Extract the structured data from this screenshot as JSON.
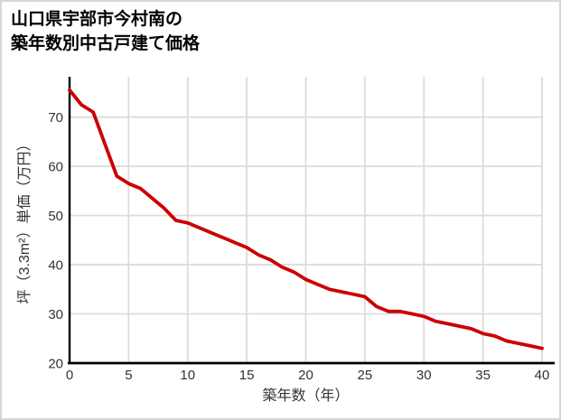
{
  "header": {
    "title_lines": [
      "山口県宇部市今村南の",
      "築年数別中古戸建て価格"
    ]
  },
  "chart_data": {
    "type": "line",
    "title": "山口県宇部市今村南の築年数別中古戸建て価格",
    "xlabel": "築年数（年）",
    "ylabel": "坪（3.3m²）単価（万円）",
    "x": [
      0,
      1,
      2,
      3,
      4,
      5,
      6,
      7,
      8,
      9,
      10,
      11,
      12,
      13,
      14,
      15,
      16,
      17,
      18,
      19,
      20,
      21,
      22,
      23,
      24,
      25,
      26,
      27,
      28,
      29,
      30,
      31,
      32,
      33,
      34,
      35,
      36,
      37,
      38,
      39,
      40
    ],
    "values": [
      75.5,
      72.5,
      71,
      64.5,
      58,
      56.5,
      55.5,
      53.5,
      51.5,
      49,
      48.5,
      47.5,
      46.5,
      45.5,
      44.5,
      43.5,
      42,
      41,
      39.5,
      38.5,
      37,
      36,
      35,
      34.5,
      34,
      33.5,
      31.5,
      30.5,
      30.5,
      30,
      29.5,
      28.5,
      28,
      27.5,
      27,
      26,
      25.5,
      24.5,
      24,
      23.5,
      23
    ],
    "xticks": [
      0,
      5,
      10,
      15,
      20,
      25,
      30,
      35,
      40
    ],
    "yticks": [
      20,
      30,
      40,
      50,
      60,
      70
    ],
    "xlim": [
      0,
      40
    ],
    "ylim": [
      20,
      78.2
    ],
    "grid": true,
    "legend": "none",
    "colors": {
      "line": "#cc0000",
      "grid": "#dcdcdc",
      "axis": "#000000",
      "tick_label": "#333333",
      "axis_label": "#333333"
    }
  }
}
